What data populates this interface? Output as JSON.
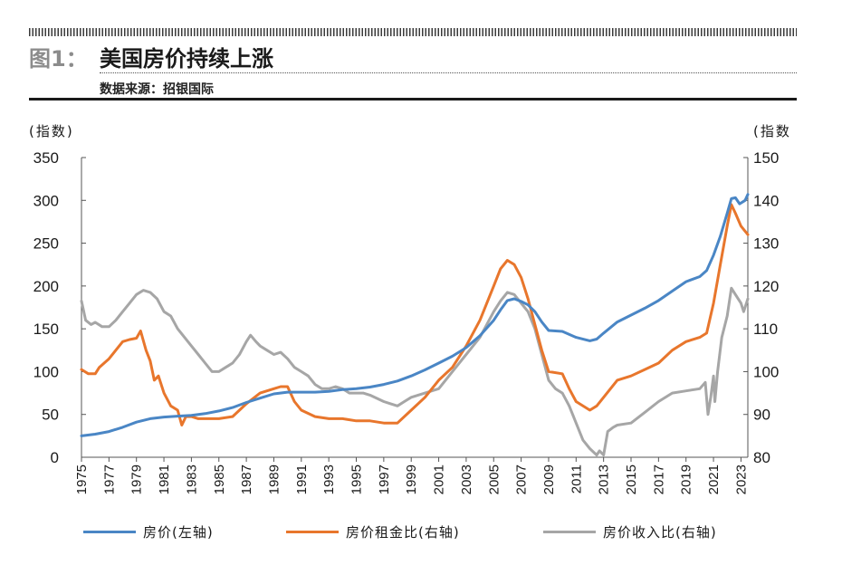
{
  "header": {
    "figure_label": "图1：",
    "title": "美国房价持续上涨",
    "source": "数据来源：招银国际"
  },
  "chart_data": {
    "type": "line",
    "left_axis": {
      "label": "(指数)",
      "min": 0,
      "max": 350,
      "ticks": [
        0,
        50,
        100,
        150,
        200,
        250,
        300,
        350
      ]
    },
    "right_axis": {
      "label": "(指数",
      "min": 80,
      "max": 150,
      "ticks": [
        80,
        90,
        100,
        110,
        120,
        130,
        140,
        150
      ]
    },
    "x_range": [
      1975,
      2023.5
    ],
    "x_ticks": [
      "1975",
      "1977",
      "1979",
      "1981",
      "1983",
      "1985",
      "1987",
      "1989",
      "1991",
      "1993",
      "1995",
      "1997",
      "1999",
      "2001",
      "2003",
      "2005",
      "2007",
      "2009",
      "2011",
      "2013",
      "2015",
      "2017",
      "2019",
      "2021",
      "2023"
    ],
    "legend_position": "bottom",
    "series": [
      {
        "name": "房价(左轴)",
        "axis": "left",
        "color": "#4a86c5",
        "points": [
          [
            1975,
            25
          ],
          [
            1976,
            27
          ],
          [
            1977,
            30
          ],
          [
            1978,
            35
          ],
          [
            1979,
            41
          ],
          [
            1980,
            45
          ],
          [
            1981,
            47
          ],
          [
            1982,
            48
          ],
          [
            1983,
            49
          ],
          [
            1984,
            51
          ],
          [
            1985,
            54
          ],
          [
            1986,
            58
          ],
          [
            1987,
            64
          ],
          [
            1988,
            69
          ],
          [
            1989,
            74
          ],
          [
            1990,
            76
          ],
          [
            1991,
            76
          ],
          [
            1992,
            76
          ],
          [
            1993,
            77
          ],
          [
            1994,
            79
          ],
          [
            1995,
            80
          ],
          [
            1996,
            82
          ],
          [
            1997,
            85
          ],
          [
            1998,
            89
          ],
          [
            1999,
            95
          ],
          [
            2000,
            102
          ],
          [
            2001,
            110
          ],
          [
            2002,
            118
          ],
          [
            2003,
            128
          ],
          [
            2004,
            142
          ],
          [
            2005,
            160
          ],
          [
            2005.5,
            172
          ],
          [
            2006,
            183
          ],
          [
            2006.5,
            185
          ],
          [
            2007,
            182
          ],
          [
            2007.5,
            178
          ],
          [
            2008,
            170
          ],
          [
            2008.5,
            158
          ],
          [
            2009,
            148
          ],
          [
            2010,
            147
          ],
          [
            2011,
            140
          ],
          [
            2012,
            136
          ],
          [
            2012.5,
            138
          ],
          [
            2013,
            145
          ],
          [
            2014,
            158
          ],
          [
            2015,
            166
          ],
          [
            2016,
            174
          ],
          [
            2017,
            183
          ],
          [
            2018,
            194
          ],
          [
            2019,
            205
          ],
          [
            2020,
            211
          ],
          [
            2020.5,
            218
          ],
          [
            2021,
            236
          ],
          [
            2021.5,
            258
          ],
          [
            2022,
            285
          ],
          [
            2022.3,
            302
          ],
          [
            2022.6,
            303
          ],
          [
            2022.9,
            296
          ],
          [
            2023.3,
            300
          ],
          [
            2023.5,
            307
          ]
        ]
      },
      {
        "name": "房价租金比(右轴)",
        "axis": "right",
        "color": "#e8762c",
        "points": [
          [
            1975,
            100.5
          ],
          [
            1975.5,
            99.5
          ],
          [
            1976,
            99.5
          ],
          [
            1976.3,
            101
          ],
          [
            1977,
            103
          ],
          [
            1977.5,
            105
          ],
          [
            1978,
            107
          ],
          [
            1978.5,
            107.5
          ],
          [
            1979,
            107.8
          ],
          [
            1979.3,
            109.5
          ],
          [
            1979.7,
            105
          ],
          [
            1980,
            102.5
          ],
          [
            1980.3,
            98
          ],
          [
            1980.6,
            99
          ],
          [
            1981,
            95
          ],
          [
            1981.5,
            92
          ],
          [
            1982,
            91
          ],
          [
            1982.3,
            87.5
          ],
          [
            1982.6,
            89.5
          ],
          [
            1983,
            89.5
          ],
          [
            1983.5,
            89
          ],
          [
            1984,
            89
          ],
          [
            1985,
            89
          ],
          [
            1986,
            89.5
          ],
          [
            1987,
            92.5
          ],
          [
            1988,
            95
          ],
          [
            1988.5,
            95.5
          ],
          [
            1989,
            96
          ],
          [
            1989.5,
            96.5
          ],
          [
            1990,
            96.5
          ],
          [
            1990.5,
            93
          ],
          [
            1991,
            91
          ],
          [
            1992,
            89.5
          ],
          [
            1993,
            89
          ],
          [
            1994,
            89
          ],
          [
            1995,
            88.5
          ],
          [
            1996,
            88.5
          ],
          [
            1997,
            88
          ],
          [
            1998,
            88
          ],
          [
            1999,
            91
          ],
          [
            2000,
            94
          ],
          [
            2001,
            98
          ],
          [
            2002,
            101
          ],
          [
            2003,
            106
          ],
          [
            2004,
            112
          ],
          [
            2005,
            120
          ],
          [
            2005.5,
            124
          ],
          [
            2006,
            126
          ],
          [
            2006.5,
            125
          ],
          [
            2007,
            122
          ],
          [
            2007.5,
            117
          ],
          [
            2008,
            111
          ],
          [
            2008.5,
            105
          ],
          [
            2009,
            100
          ],
          [
            2010,
            99.5
          ],
          [
            2010.5,
            96
          ],
          [
            2011,
            93
          ],
          [
            2012,
            91
          ],
          [
            2012.5,
            92
          ],
          [
            2013,
            94
          ],
          [
            2014,
            98
          ],
          [
            2015,
            99
          ],
          [
            2016,
            100.5
          ],
          [
            2017,
            102
          ],
          [
            2018,
            105
          ],
          [
            2019,
            107
          ],
          [
            2020,
            108
          ],
          [
            2020.5,
            109
          ],
          [
            2021,
            116
          ],
          [
            2021.5,
            125
          ],
          [
            2022,
            134
          ],
          [
            2022.3,
            139
          ],
          [
            2022.6,
            137
          ],
          [
            2023,
            134
          ],
          [
            2023.5,
            132
          ]
        ]
      },
      {
        "name": "房价收入比(右轴)",
        "axis": "right",
        "color": "#a6a6a6",
        "points": [
          [
            1975,
            116.5
          ],
          [
            1975.3,
            112
          ],
          [
            1975.7,
            111
          ],
          [
            1976,
            111.5
          ],
          [
            1976.5,
            110.5
          ],
          [
            1977,
            110.5
          ],
          [
            1977.5,
            112
          ],
          [
            1978,
            114
          ],
          [
            1978.5,
            116
          ],
          [
            1979,
            118
          ],
          [
            1979.5,
            119
          ],
          [
            1980,
            118.5
          ],
          [
            1980.5,
            117
          ],
          [
            1981,
            114
          ],
          [
            1981.5,
            113
          ],
          [
            1982,
            110
          ],
          [
            1982.5,
            108
          ],
          [
            1983,
            106
          ],
          [
            1983.5,
            104
          ],
          [
            1984,
            102
          ],
          [
            1984.5,
            100
          ],
          [
            1985,
            100
          ],
          [
            1985.5,
            101
          ],
          [
            1986,
            102
          ],
          [
            1986.5,
            104
          ],
          [
            1987,
            107
          ],
          [
            1987.3,
            108.5
          ],
          [
            1987.7,
            107
          ],
          [
            1988,
            106
          ],
          [
            1988.5,
            105
          ],
          [
            1989,
            104
          ],
          [
            1989.5,
            104.5
          ],
          [
            1990,
            103
          ],
          [
            1990.5,
            101
          ],
          [
            1991,
            100
          ],
          [
            1991.5,
            99
          ],
          [
            1992,
            97
          ],
          [
            1992.5,
            96
          ],
          [
            1993,
            96
          ],
          [
            1993.5,
            96.5
          ],
          [
            1994,
            96
          ],
          [
            1994.5,
            95
          ],
          [
            1995,
            95
          ],
          [
            1995.5,
            95
          ],
          [
            1996,
            94.5
          ],
          [
            1997,
            93
          ],
          [
            1997.5,
            92.5
          ],
          [
            1998,
            92
          ],
          [
            1998.5,
            93
          ],
          [
            1999,
            94
          ],
          [
            2000,
            95
          ],
          [
            2001,
            96
          ],
          [
            2001.5,
            98
          ],
          [
            2002,
            100
          ],
          [
            2003,
            104
          ],
          [
            2004,
            108
          ],
          [
            2005,
            114
          ],
          [
            2005.5,
            116.5
          ],
          [
            2006,
            118.5
          ],
          [
            2006.5,
            118
          ],
          [
            2007,
            116
          ],
          [
            2007.5,
            114
          ],
          [
            2008,
            110
          ],
          [
            2008.5,
            104
          ],
          [
            2009,
            98
          ],
          [
            2009.5,
            96
          ],
          [
            2010,
            95
          ],
          [
            2010.5,
            92
          ],
          [
            2011,
            88
          ],
          [
            2011.5,
            84
          ],
          [
            2012,
            82
          ],
          [
            2012.5,
            80.5
          ],
          [
            2012.7,
            81.5
          ],
          [
            2013,
            80.5
          ],
          [
            2013.3,
            86
          ],
          [
            2013.7,
            87
          ],
          [
            2014,
            87.5
          ],
          [
            2015,
            88
          ],
          [
            2016,
            90.5
          ],
          [
            2017,
            93
          ],
          [
            2018,
            95
          ],
          [
            2019,
            95.5
          ],
          [
            2020,
            96
          ],
          [
            2020.4,
            97.5
          ],
          [
            2020.6,
            90
          ],
          [
            2020.8,
            94
          ],
          [
            2021,
            99
          ],
          [
            2021.1,
            93
          ],
          [
            2021.3,
            100
          ],
          [
            2021.6,
            108
          ],
          [
            2022,
            113
          ],
          [
            2022.3,
            119.5
          ],
          [
            2022.6,
            118
          ],
          [
            2023,
            116
          ],
          [
            2023.2,
            114
          ],
          [
            2023.5,
            117
          ]
        ]
      }
    ]
  }
}
